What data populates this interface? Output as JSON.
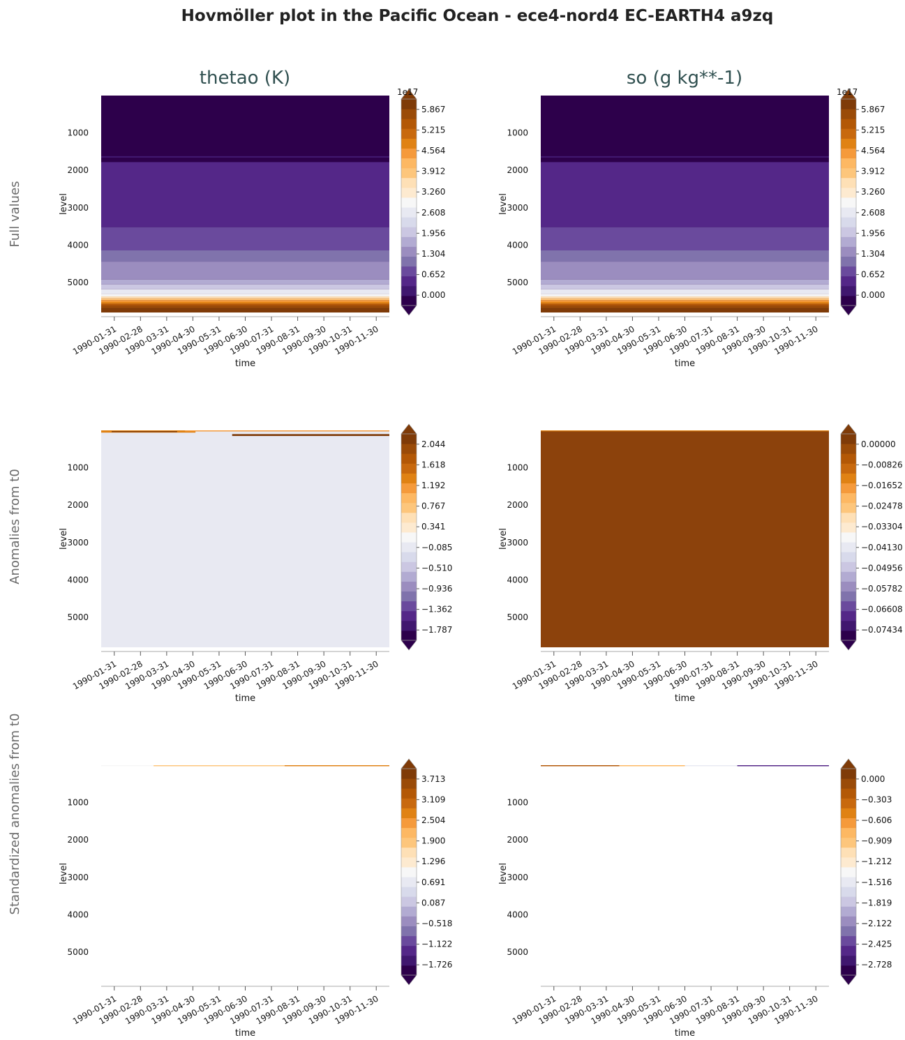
{
  "figure": {
    "title": "Hovmöller plot in the Pacific Ocean - ece4-nord4 EC-EARTH4 a9zq",
    "column_titles": [
      "thetao (K)",
      "so (g kg**-1)"
    ],
    "row_labels": [
      "Full values",
      "Anomalies from t0",
      "Standardized anomalies from t0"
    ]
  },
  "colors": {
    "cmap": [
      "#2d004b",
      "#40176f",
      "#542788",
      "#6a4a9d",
      "#8073ac",
      "#9b8dbf",
      "#b2abd2",
      "#cbc7e2",
      "#d8daeb",
      "#e8e9f2",
      "#f7f7f7",
      "#fdead0",
      "#fee0b6",
      "#fdc67c",
      "#fdb863",
      "#f59a3b",
      "#e08214",
      "#c8690e",
      "#b35806",
      "#9a4b08",
      "#7f3b08"
    ],
    "title_color": "#2f4f4f"
  },
  "chart_data": [
    {
      "type": "heatmap",
      "row": 0,
      "col": 0,
      "variable": "thetao (K)",
      "row_label": "Full values",
      "xlabel": "time",
      "ylabel": "level",
      "x_ticks": [
        "1990-01-31",
        "1990-02-28",
        "1990-03-31",
        "1990-04-30",
        "1990-05-31",
        "1990-06-30",
        "1990-07-31",
        "1990-08-31",
        "1990-09-30",
        "1990-10-31",
        "1990-11-30"
      ],
      "y_ticks": [
        1000,
        2000,
        3000,
        4000,
        5000
      ],
      "ylim": [
        5800,
        0
      ],
      "colorbar_offset": "1e17",
      "colorbar_ticks": [
        "0.000",
        "0.652",
        "1.304",
        "1.956",
        "2.608",
        "3.260",
        "3.912",
        "4.564",
        "5.215",
        "5.867"
      ],
      "vmin": 0.0,
      "vmax": 6.52,
      "bands": [
        {
          "from": 0,
          "to": 1620,
          "value": 0.05
        },
        {
          "from": 1620,
          "to": 1660,
          "value": 0.4
        },
        {
          "from": 1660,
          "to": 1780,
          "value": 0.05
        },
        {
          "from": 1780,
          "to": 3520,
          "value": 0.65
        },
        {
          "from": 3520,
          "to": 4140,
          "value": 1.05
        },
        {
          "from": 4140,
          "to": 4440,
          "value": 1.35
        },
        {
          "from": 4440,
          "to": 4920,
          "value": 1.6
        },
        {
          "from": 4920,
          "to": 5050,
          "value": 1.95
        },
        {
          "from": 5050,
          "to": 5180,
          "value": 2.3
        },
        {
          "from": 5180,
          "to": 5300,
          "value": 2.8
        },
        {
          "from": 5300,
          "to": 5370,
          "value": 3.3
        },
        {
          "from": 5370,
          "to": 5420,
          "value": 3.8
        },
        {
          "from": 5420,
          "to": 5470,
          "value": 4.3
        },
        {
          "from": 5470,
          "to": 5520,
          "value": 4.8
        },
        {
          "from": 5520,
          "to": 5570,
          "value": 5.2
        },
        {
          "from": 5570,
          "to": 5620,
          "value": 5.6
        },
        {
          "from": 5620,
          "to": 5680,
          "value": 6.0
        },
        {
          "from": 5680,
          "to": 5800,
          "value": 6.4
        }
      ]
    },
    {
      "type": "heatmap",
      "row": 0,
      "col": 1,
      "variable": "so (g kg**-1)",
      "row_label": "Full values",
      "xlabel": "time",
      "ylabel": "level",
      "x_ticks": [
        "1990-01-31",
        "1990-02-28",
        "1990-03-31",
        "1990-04-30",
        "1990-05-31",
        "1990-06-30",
        "1990-07-31",
        "1990-08-31",
        "1990-09-30",
        "1990-10-31",
        "1990-11-30"
      ],
      "y_ticks": [
        1000,
        2000,
        3000,
        4000,
        5000
      ],
      "ylim": [
        5800,
        0
      ],
      "colorbar_offset": "1e17",
      "colorbar_ticks": [
        "0.000",
        "0.652",
        "1.304",
        "1.956",
        "2.608",
        "3.260",
        "3.912",
        "4.564",
        "5.215",
        "5.867"
      ],
      "vmin": 0.0,
      "vmax": 6.52,
      "bands": [
        {
          "from": 0,
          "to": 1620,
          "value": 0.05
        },
        {
          "from": 1620,
          "to": 1660,
          "value": 0.4
        },
        {
          "from": 1660,
          "to": 1780,
          "value": 0.05
        },
        {
          "from": 1780,
          "to": 3520,
          "value": 0.65
        },
        {
          "from": 3520,
          "to": 4140,
          "value": 1.05
        },
        {
          "from": 4140,
          "to": 4440,
          "value": 1.35
        },
        {
          "from": 4440,
          "to": 4920,
          "value": 1.6
        },
        {
          "from": 4920,
          "to": 5050,
          "value": 1.95
        },
        {
          "from": 5050,
          "to": 5180,
          "value": 2.3
        },
        {
          "from": 5180,
          "to": 5300,
          "value": 2.8
        },
        {
          "from": 5300,
          "to": 5370,
          "value": 3.3
        },
        {
          "from": 5370,
          "to": 5420,
          "value": 3.8
        },
        {
          "from": 5420,
          "to": 5470,
          "value": 4.3
        },
        {
          "from": 5470,
          "to": 5520,
          "value": 4.8
        },
        {
          "from": 5520,
          "to": 5570,
          "value": 5.2
        },
        {
          "from": 5570,
          "to": 5620,
          "value": 5.6
        },
        {
          "from": 5620,
          "to": 5680,
          "value": 6.0
        },
        {
          "from": 5680,
          "to": 5800,
          "value": 6.4
        }
      ]
    },
    {
      "type": "heatmap",
      "row": 1,
      "col": 0,
      "variable": "thetao (K)",
      "row_label": "Anomalies from t0",
      "xlabel": "time",
      "ylabel": "level",
      "x_ticks": [
        "1990-01-31",
        "1990-02-28",
        "1990-03-31",
        "1990-04-30",
        "1990-05-31",
        "1990-06-30",
        "1990-07-31",
        "1990-08-31",
        "1990-09-30",
        "1990-10-31",
        "1990-11-30"
      ],
      "y_ticks": [
        1000,
        2000,
        3000,
        4000,
        5000
      ],
      "ylim": [
        5800,
        0
      ],
      "colorbar_offset": "",
      "colorbar_ticks": [
        "−1.787",
        "−1.362",
        "−0.936",
        "−0.510",
        "−0.085",
        "0.341",
        "0.767",
        "1.192",
        "1.618",
        "2.044"
      ],
      "vmin": -2.0,
      "vmax": 2.257,
      "background_value": 0.0,
      "surface_traces": [
        {
          "time_start": 0.0,
          "time_end": 3.6,
          "level_top": 0,
          "level_bottom": 60,
          "value": 1.4
        },
        {
          "time_start": 0.4,
          "time_end": 2.9,
          "level_top": 20,
          "level_bottom": 45,
          "value": 2.1
        },
        {
          "time_start": 3.2,
          "time_end": 11.0,
          "level_top": 0,
          "level_bottom": 20,
          "value": 1.2
        },
        {
          "time_start": 5.0,
          "time_end": 11.0,
          "level_top": 100,
          "level_bottom": 150,
          "value": 2.1
        }
      ]
    },
    {
      "type": "heatmap",
      "row": 1,
      "col": 1,
      "variable": "so (g kg**-1)",
      "row_label": "Anomalies from t0",
      "xlabel": "time",
      "ylabel": "level",
      "x_ticks": [
        "1990-01-31",
        "1990-02-28",
        "1990-03-31",
        "1990-04-30",
        "1990-05-31",
        "1990-06-30",
        "1990-07-31",
        "1990-08-31",
        "1990-09-30",
        "1990-10-31",
        "1990-11-30"
      ],
      "y_ticks": [
        1000,
        2000,
        3000,
        4000,
        5000
      ],
      "ylim": [
        5800,
        0
      ],
      "colorbar_offset": "",
      "colorbar_ticks": [
        "−0.07434",
        "−0.06608",
        "−0.05782",
        "−0.04956",
        "−0.04130",
        "−0.03304",
        "−0.02478",
        "−0.01652",
        "−0.00826",
        "0.00000"
      ],
      "vmin": -0.0826,
      "vmax": 0.00826,
      "background_value": 0.0,
      "surface_traces": [
        {
          "time_start": 0.0,
          "time_end": 11.0,
          "level_top": 0,
          "level_bottom": 25,
          "value": -0.012
        }
      ]
    },
    {
      "type": "heatmap",
      "row": 2,
      "col": 0,
      "variable": "thetao (K)",
      "row_label": "Standardized anomalies from t0",
      "xlabel": "time",
      "ylabel": "level",
      "x_ticks": [
        "1990-01-31",
        "1990-02-28",
        "1990-03-31",
        "1990-04-30",
        "1990-05-31",
        "1990-06-30",
        "1990-07-31",
        "1990-08-31",
        "1990-09-30",
        "1990-10-31",
        "1990-11-30"
      ],
      "y_ticks": [
        1000,
        2000,
        3000,
        4000,
        5000
      ],
      "ylim": [
        5800,
        0
      ],
      "colorbar_offset": "",
      "colorbar_ticks": [
        "−1.726",
        "−1.122",
        "−0.518",
        "0.087",
        "0.691",
        "1.296",
        "1.900",
        "2.504",
        "3.109",
        "3.713"
      ],
      "vmin": -2.0,
      "vmax": 4.0,
      "background_value": "none",
      "surface_traces": [
        {
          "time_start": 0.0,
          "time_end": 2.0,
          "level_top": 0,
          "level_bottom": 25,
          "value": 1.0
        },
        {
          "time_start": 2.0,
          "time_end": 7.0,
          "level_top": 0,
          "level_bottom": 25,
          "value": 1.9
        },
        {
          "time_start": 7.0,
          "time_end": 11.0,
          "level_top": 0,
          "level_bottom": 25,
          "value": 2.6
        }
      ]
    },
    {
      "type": "heatmap",
      "row": 2,
      "col": 1,
      "variable": "so (g kg**-1)",
      "row_label": "Standardized anomalies from t0",
      "xlabel": "time",
      "ylabel": "level",
      "x_ticks": [
        "1990-01-31",
        "1990-02-28",
        "1990-03-31",
        "1990-04-30",
        "1990-05-31",
        "1990-06-30",
        "1990-07-31",
        "1990-08-31",
        "1990-09-30",
        "1990-10-31",
        "1990-11-30"
      ],
      "y_ticks": [
        1000,
        2000,
        3000,
        4000,
        5000
      ],
      "ylim": [
        5800,
        0
      ],
      "colorbar_offset": "",
      "colorbar_ticks": [
        "−2.728",
        "−2.425",
        "−2.122",
        "−1.819",
        "−1.516",
        "−1.212",
        "−0.909",
        "−0.606",
        "−0.303",
        "0.000"
      ],
      "vmin": -3.0,
      "vmax": 0.15,
      "background_value": "none",
      "surface_traces": [
        {
          "time_start": 0.0,
          "time_end": 3.0,
          "level_top": 0,
          "level_bottom": 25,
          "value": -0.2
        },
        {
          "time_start": 3.0,
          "time_end": 5.5,
          "level_top": 0,
          "level_bottom": 25,
          "value": -0.8
        },
        {
          "time_start": 5.5,
          "time_end": 7.5,
          "level_top": 0,
          "level_bottom": 25,
          "value": -1.6
        },
        {
          "time_start": 7.5,
          "time_end": 11.0,
          "level_top": 0,
          "level_bottom": 25,
          "value": -2.6
        }
      ]
    }
  ]
}
